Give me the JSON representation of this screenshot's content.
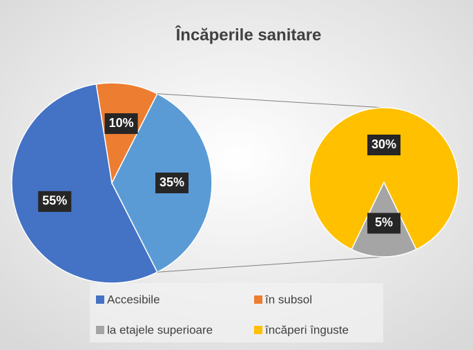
{
  "chart_data": {
    "type": "pie_of_pie",
    "title": "Încăperile sanitare",
    "categories": [
      "Accesibile",
      "în subsol",
      "la etajele superioare",
      "încăperi înguste"
    ],
    "values": [
      55,
      10,
      5,
      30
    ],
    "value_labels": [
      "55%",
      "10%",
      "5%",
      "30%"
    ],
    "colors": [
      "#4472c4",
      "#ed7d31",
      "#a5a5a5",
      "#ffc000"
    ],
    "combined_value": 35,
    "combined_label": "35%",
    "combined_color": "#5b9bd5",
    "legend": "bottom"
  }
}
